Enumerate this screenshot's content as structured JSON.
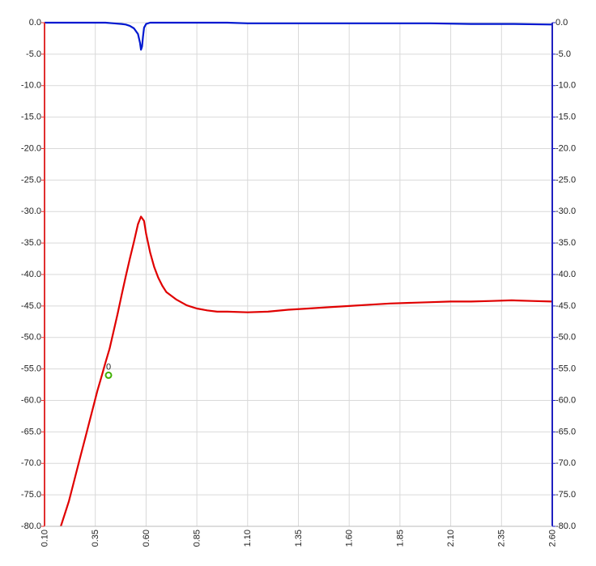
{
  "chart_data": {
    "type": "line",
    "title": "",
    "xlabel": "",
    "ylabel_left": "",
    "ylabel_right": "",
    "xlim": [
      0.1,
      2.6
    ],
    "ylim_left": [
      -80.0,
      0.0
    ],
    "ylim_right": [
      -80.0,
      0.0
    ],
    "x_ticks": [
      "0.10",
      "0.35",
      "0.60",
      "0.85",
      "1.10",
      "1.35",
      "1.60",
      "1.85",
      "2.10",
      "2.35",
      "2.60"
    ],
    "y_ticks_left": [
      "0.0",
      "-5.0",
      "-10.0",
      "-15.0",
      "-20.0",
      "-25.0",
      "-30.0",
      "-35.0",
      "-40.0",
      "-45.0",
      "-50.0",
      "-55.0",
      "-60.0",
      "-65.0",
      "-70.0",
      "-75.0",
      "-80.0"
    ],
    "y_ticks_right": [
      "0.0",
      "-5.0",
      "-10.0",
      "-15.0",
      "-20.0",
      "-25.0",
      "-30.0",
      "-35.0",
      "-40.0",
      "-45.0",
      "-50.0",
      "-55.0",
      "-60.0",
      "-65.0",
      "-70.0",
      "-75.0",
      "-80.0"
    ],
    "grid": true,
    "colors": {
      "left_axis": "#e03030",
      "right_axis": "#2020c0",
      "series_1": "#e00000",
      "series_2": "#0018d0",
      "marker": "#40b000",
      "grid": "#d9d9d9"
    },
    "series": [
      {
        "axis": "left",
        "x": [
          0.18,
          0.2,
          0.22,
          0.24,
          0.26,
          0.28,
          0.3,
          0.32,
          0.34,
          0.36,
          0.38,
          0.4,
          0.42,
          0.44,
          0.46,
          0.48,
          0.5,
          0.52,
          0.54,
          0.56,
          0.575,
          0.59,
          0.6,
          0.62,
          0.64,
          0.66,
          0.68,
          0.7,
          0.75,
          0.8,
          0.85,
          0.9,
          0.95,
          1.0,
          1.1,
          1.2,
          1.3,
          1.4,
          1.5,
          1.6,
          1.7,
          1.8,
          1.9,
          2.0,
          2.1,
          2.2,
          2.3,
          2.4,
          2.5,
          2.6
        ],
        "values": [
          -80.0,
          -78.0,
          -76.0,
          -73.5,
          -71.0,
          -68.5,
          -66.0,
          -63.5,
          -61.0,
          -58.5,
          -56.3,
          -54.0,
          -51.8,
          -49.0,
          -46.2,
          -43.2,
          -40.3,
          -37.5,
          -34.8,
          -32.0,
          -30.8,
          -31.5,
          -33.5,
          -36.5,
          -38.8,
          -40.5,
          -41.8,
          -42.8,
          -44.0,
          -44.9,
          -45.4,
          -45.7,
          -45.9,
          -45.9,
          -46.0,
          -45.9,
          -45.6,
          -45.4,
          -45.2,
          -45.0,
          -44.8,
          -44.6,
          -44.5,
          -44.4,
          -44.3,
          -44.3,
          -44.2,
          -44.1,
          -44.2,
          -44.3
        ]
      },
      {
        "axis": "right",
        "x": [
          0.1,
          0.2,
          0.3,
          0.4,
          0.44,
          0.48,
          0.5,
          0.52,
          0.54,
          0.56,
          0.57,
          0.575,
          0.58,
          0.585,
          0.59,
          0.6,
          0.62,
          0.65,
          0.7,
          0.8,
          0.9,
          1.0,
          1.1,
          1.2,
          1.4,
          1.6,
          1.8,
          2.0,
          2.2,
          2.4,
          2.6
        ],
        "values": [
          0.0,
          0.0,
          0.0,
          0.0,
          -0.1,
          -0.2,
          -0.3,
          -0.5,
          -0.9,
          -1.8,
          -3.2,
          -4.3,
          -3.8,
          -2.2,
          -0.8,
          -0.2,
          0.0,
          0.0,
          0.0,
          0.0,
          0.0,
          0.0,
          -0.1,
          -0.1,
          -0.1,
          -0.1,
          -0.1,
          -0.1,
          -0.2,
          -0.2,
          -0.3
        ]
      }
    ],
    "markers": [
      {
        "label": "0",
        "x": 0.415,
        "y": -56.0
      }
    ]
  }
}
